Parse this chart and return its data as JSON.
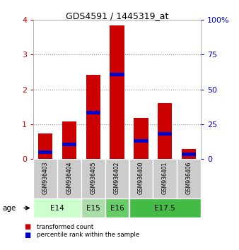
{
  "title": "GDS4591 / 1445319_at",
  "samples": [
    "GSM936403",
    "GSM936404",
    "GSM936405",
    "GSM936402",
    "GSM936400",
    "GSM936401",
    "GSM936406"
  ],
  "red_values": [
    0.72,
    1.08,
    2.42,
    3.85,
    1.18,
    1.6,
    0.28
  ],
  "blue_values": [
    0.18,
    0.42,
    1.32,
    2.42,
    0.52,
    0.72,
    0.12
  ],
  "age_groups": [
    {
      "label": "E14",
      "span": [
        0,
        2
      ],
      "color": "#ccffcc"
    },
    {
      "label": "E15",
      "span": [
        2,
        3
      ],
      "color": "#aaddaa"
    },
    {
      "label": "E16",
      "span": [
        3,
        4
      ],
      "color": "#66cc66"
    },
    {
      "label": "E17.5",
      "span": [
        4,
        7
      ],
      "color": "#44bb44"
    }
  ],
  "ylim_left": [
    0,
    4
  ],
  "ylim_right": [
    0,
    100
  ],
  "yticks_left": [
    0,
    1,
    2,
    3,
    4
  ],
  "yticks_right": [
    0,
    25,
    50,
    75,
    100
  ],
  "left_tick_color": "#cc0000",
  "right_tick_color": "#0000cc",
  "bar_width": 0.6,
  "red_color": "#cc0000",
  "blue_color": "#0000cc",
  "sample_bg": "#cccccc",
  "blue_bar_height": 0.1
}
